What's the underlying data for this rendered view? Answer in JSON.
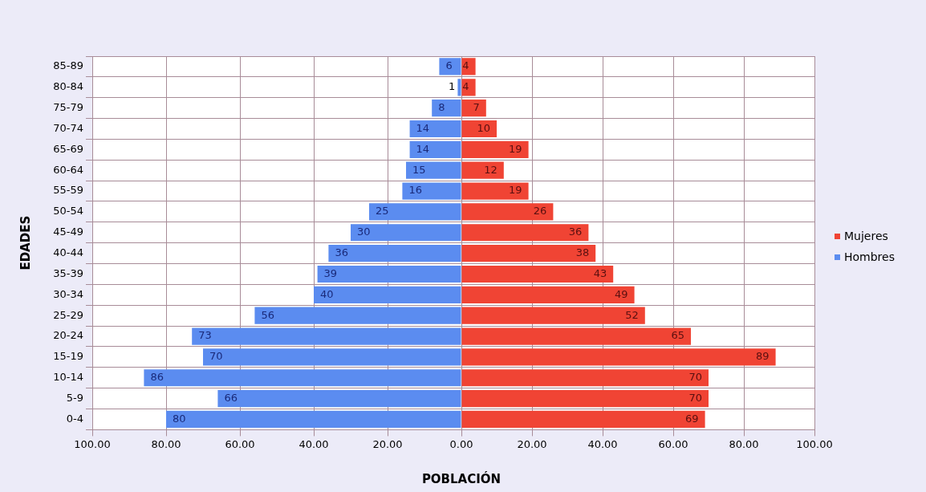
{
  "chart_data": [
    {
      "type": "bar",
      "orientation": "horizontal",
      "xlabel": "POBLACIÓN",
      "ylabel": "EDADES",
      "categories": [
        "85-89",
        "80-84",
        "75-79",
        "70-74",
        "65-69",
        "60-64",
        "55-59",
        "50-54",
        "45-49",
        "40-44",
        "35-39",
        "30-34",
        "25-29",
        "20-24",
        "15-19",
        "10-14",
        "5-9",
        "0-4"
      ],
      "series": [
        {
          "name": "Hombres",
          "color": "#5b8cf0",
          "values": [
            6,
            1,
            8,
            14,
            14,
            15,
            16,
            25,
            30,
            36,
            39,
            40,
            56,
            73,
            70,
            86,
            66,
            80
          ]
        }
      ],
      "xlim": [
        100,
        0
      ],
      "xticks": [
        {
          "value": 100,
          "label": "100.00"
        },
        {
          "value": 80,
          "label": "80.00"
        },
        {
          "value": 60,
          "label": "60.00"
        },
        {
          "value": 40,
          "label": "40.00"
        },
        {
          "value": 20,
          "label": "20.00"
        },
        {
          "value": 0,
          "label": null
        }
      ],
      "data_labels": true,
      "grid": true,
      "legend": "right"
    },
    {
      "type": "bar",
      "orientation": "horizontal",
      "series": [
        {
          "name": "Mujeres",
          "color": "#f04434",
          "values": [
            4,
            4,
            7,
            10,
            19,
            12,
            19,
            26,
            36,
            38,
            43,
            49,
            52,
            65,
            89,
            70,
            70,
            69
          ]
        }
      ],
      "xlim": [
        0,
        100
      ],
      "xticks": [
        {
          "value": 0,
          "label": "0.00"
        },
        {
          "value": 20,
          "label": "20.00"
        },
        {
          "value": 40,
          "label": "40.00"
        },
        {
          "value": 60,
          "label": "60.00"
        },
        {
          "value": 80,
          "label": "80.00"
        },
        {
          "value": 100,
          "label": "100.00"
        }
      ],
      "data_labels": true,
      "grid": true,
      "tick_labels": "x",
      "legend": "right"
    }
  ]
}
